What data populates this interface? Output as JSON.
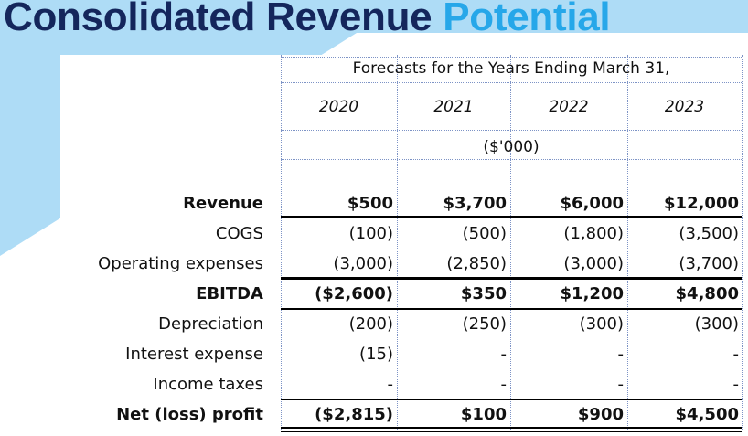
{
  "title": {
    "part1": "Consolidated Revenue",
    "part2": "Potential"
  },
  "colors": {
    "title_dark": "#14265c",
    "title_accent": "#26a7e9",
    "background_shape": "#aedcf6"
  },
  "table": {
    "header": "Forecasts for the Years Ending March 31,",
    "years": [
      "2020",
      "2021",
      "2022",
      "2023"
    ],
    "unit": "($'000)",
    "rows": [
      {
        "label": "Revenue",
        "values": [
          "$500",
          "$3,700",
          "$6,000",
          "$12,000"
        ]
      },
      {
        "label": "COGS",
        "values": [
          "(100)",
          "(500)",
          "(1,800)",
          "(3,500)"
        ]
      },
      {
        "label": "Operating expenses",
        "values": [
          "(3,000)",
          "(2,850)",
          "(3,000)",
          "(3,700)"
        ]
      },
      {
        "label": "EBITDA",
        "values": [
          "($2,600)",
          "$350",
          "$1,200",
          "$4,800"
        ]
      },
      {
        "label": "Depreciation",
        "values": [
          "(200)",
          "(250)",
          "(300)",
          "(300)"
        ]
      },
      {
        "label": "Interest expense",
        "values": [
          "(15)",
          "-",
          "-",
          "-"
        ]
      },
      {
        "label": "Income taxes",
        "values": [
          "-",
          "-",
          "-",
          "-"
        ]
      },
      {
        "label": "Net (loss) profit",
        "values": [
          "($2,815)",
          "$100",
          "$900",
          "$4,500"
        ]
      }
    ]
  }
}
